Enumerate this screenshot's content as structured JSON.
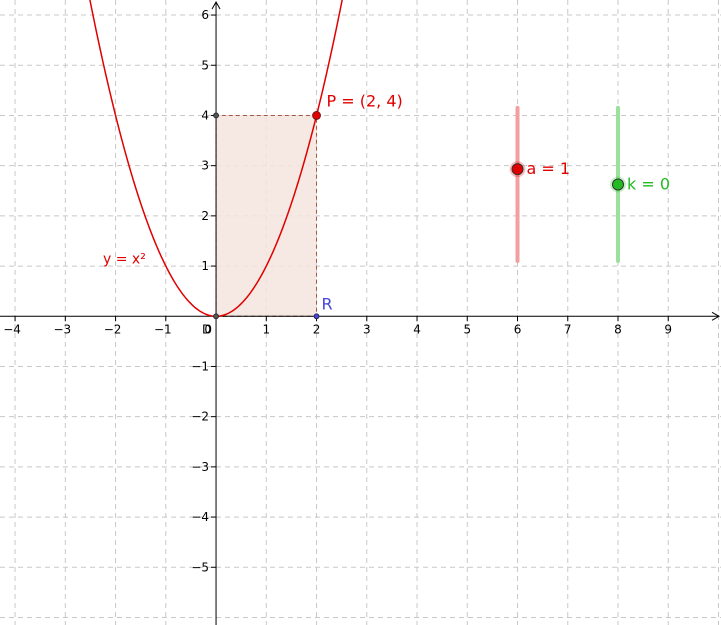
{
  "graphing_view": {
    "x_range": [
      -4.3,
      10.05
    ],
    "y_range": [
      -6.15,
      6.3
    ],
    "x_ticks": [
      "-4",
      "-3",
      "-2",
      "-1",
      "1",
      "2",
      "3",
      "4",
      "5",
      "6",
      "7",
      "8",
      "9"
    ],
    "y_ticks": [
      "-5",
      "-4",
      "-3",
      "-2",
      "-1",
      "1",
      "2",
      "3",
      "4",
      "5",
      "6"
    ],
    "origin_label": "0",
    "grid": "dashed",
    "curve": {
      "label": "y = x²",
      "color": "#e00000"
    },
    "point_P": {
      "label": "P = (2, 4)",
      "x": 2,
      "y": 4,
      "color": "#e00000"
    },
    "point_R": {
      "label": "R",
      "x": 2,
      "y": 0,
      "color": "#4444dd"
    },
    "point_D": {
      "label": "D",
      "x": 0,
      "y": 0
    },
    "point_corner": {
      "x": 0,
      "y": 4
    },
    "rectangle": {
      "fill": "#f5e4dd",
      "stroke": "#a05a40"
    },
    "slider_a": {
      "label": "a = 1",
      "value": 1,
      "min": -5,
      "max": 5,
      "x": 6,
      "y_bottom": 1.1,
      "y_top": 4.15,
      "color": "#e00000",
      "track_color": "#f0a0a0"
    },
    "slider_k": {
      "label": "k = 0",
      "value": 0,
      "min": -5,
      "max": 5,
      "x": 8,
      "y_bottom": 1.1,
      "y_top": 4.15,
      "color": "#22bb22",
      "track_color": "#9be09b"
    }
  }
}
